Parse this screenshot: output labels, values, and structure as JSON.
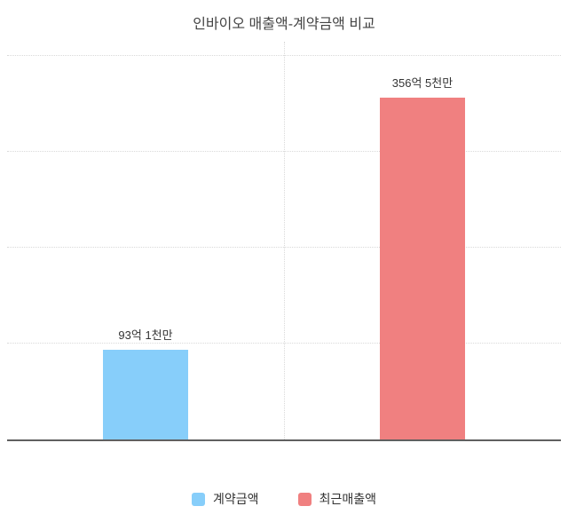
{
  "title": "인바이오 매출액-계약금액 비교",
  "chart_data": {
    "type": "bar",
    "title": "인바이오 매출액-계약금액 비교",
    "categories": [
      "계약금액",
      "최근매출액"
    ],
    "values": [
      93.1,
      356.5
    ],
    "value_labels": [
      "93억 1천만",
      "356억 5천만"
    ],
    "unit_note": "억 (hundred million KRW), read from bar data labels",
    "colors": [
      "#87CEFA",
      "#F08080"
    ],
    "xlabel": "",
    "ylabel": "",
    "ylim": [
      0,
      407
    ],
    "gridline_values": [
      100,
      200,
      300,
      400
    ],
    "grid": "dotted horizontal lines, one dotted vertical divider at center",
    "legend_position": "bottom",
    "legend": [
      {
        "label": "계약금액",
        "color": "#87CEFA"
      },
      {
        "label": "최근매출액",
        "color": "#F08080"
      }
    ]
  }
}
